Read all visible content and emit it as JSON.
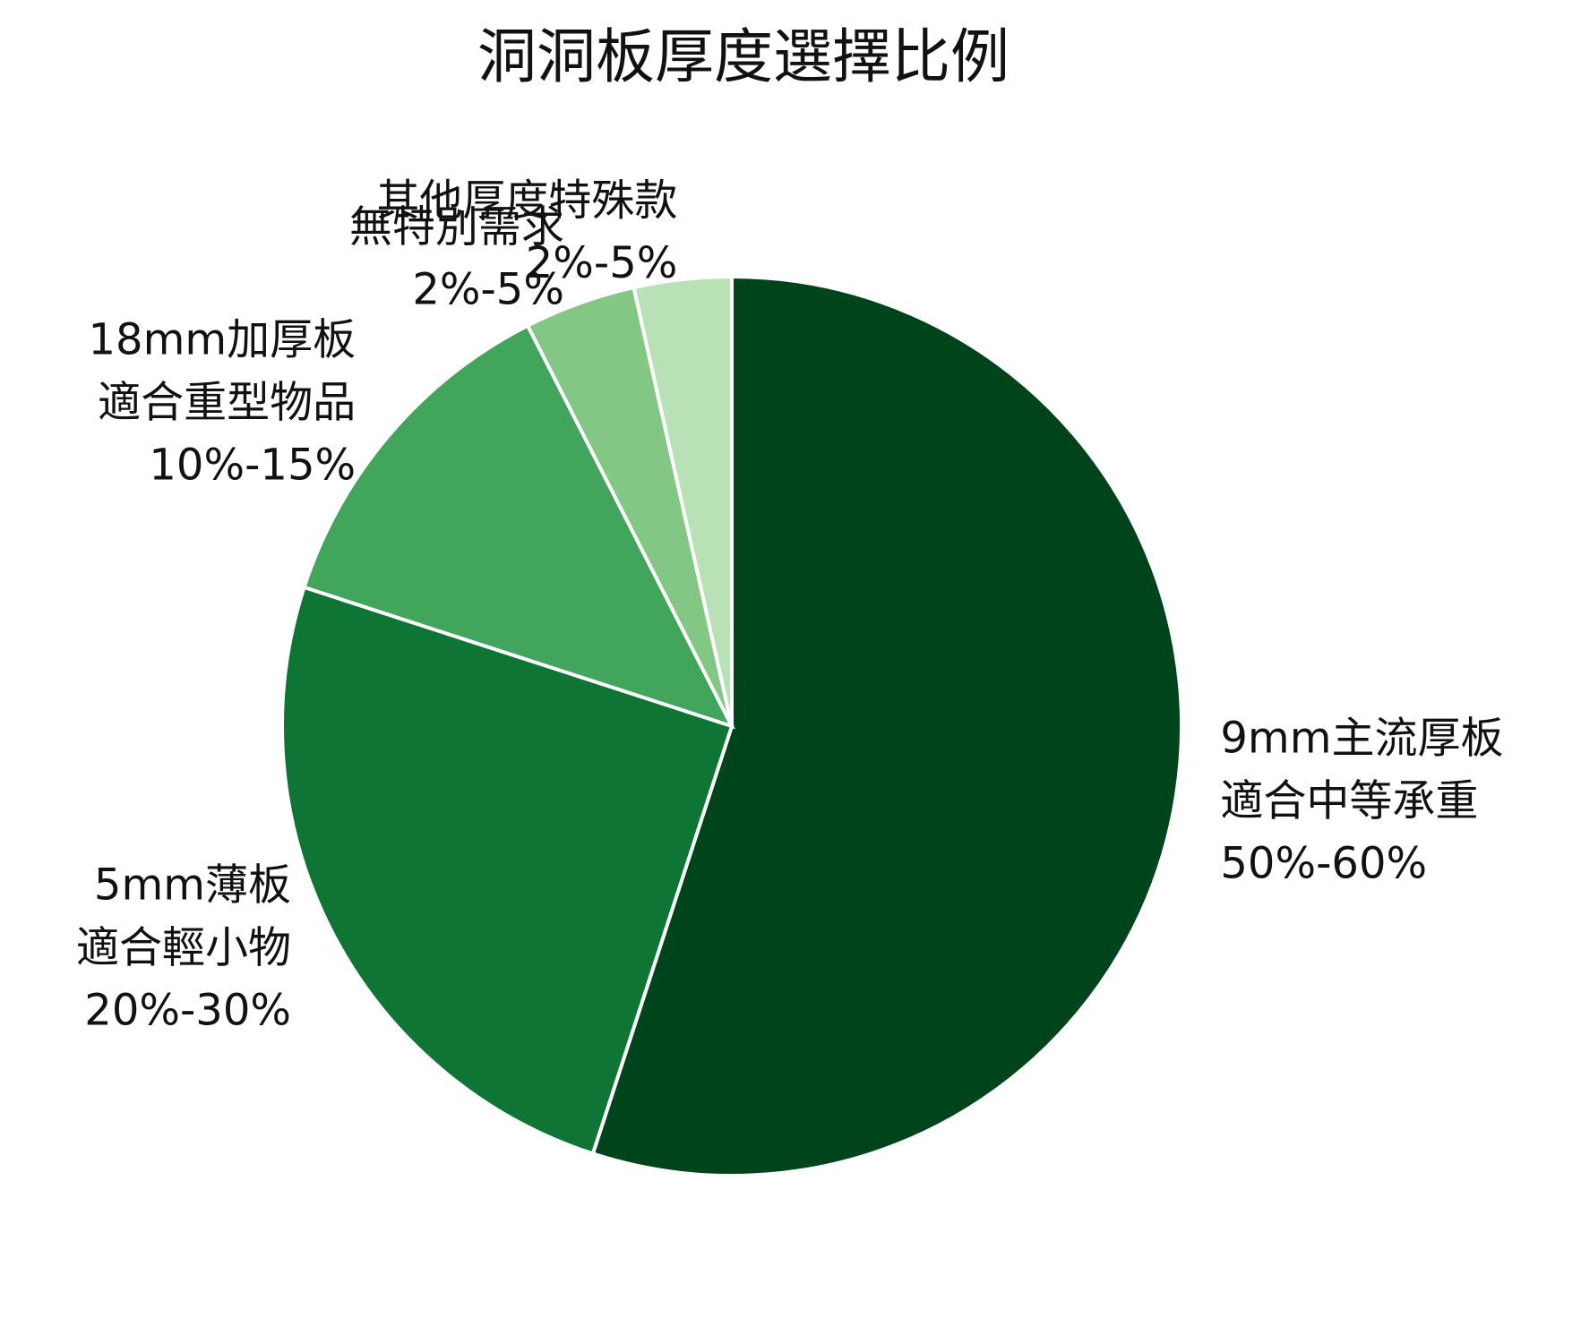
{
  "chart_data": {
    "type": "pie",
    "title": "洞洞板厚度選擇比例",
    "categories": [
      [
        "9mm主流厚板",
        "適合中等承重",
        "50%-60%"
      ],
      [
        "5mm薄板",
        "適合輕小物",
        "20%-30%"
      ],
      [
        "18mm加厚板",
        "適合重型物品",
        "10%-15%"
      ],
      [
        "無特別需求",
        "2%-5%"
      ],
      [
        "其他厚度特殊款",
        "2%-5%"
      ]
    ],
    "values": [
      55,
      25,
      12.5,
      4,
      3.5
    ],
    "colors": [
      "#00441b",
      "#0f7535",
      "#41a55c",
      "#82c784",
      "#b8e2b6"
    ]
  }
}
